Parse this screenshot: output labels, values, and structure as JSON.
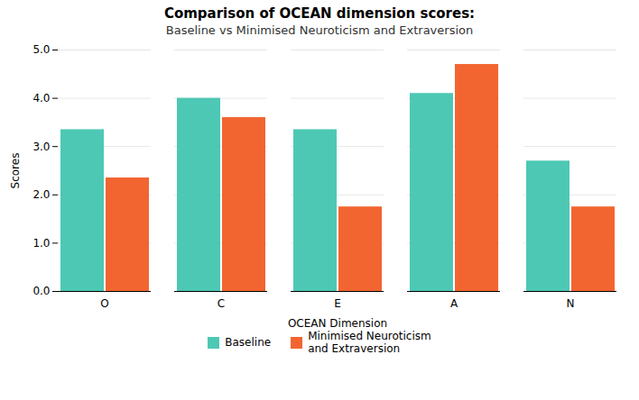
{
  "chart_data": {
    "type": "bar",
    "title": "Comparison of OCEAN dimension scores:",
    "subtitle": "Baseline vs Minimised Neuroticism and Extraversion",
    "xlabel": "OCEAN Dimension",
    "ylabel": "Scores",
    "categories": [
      "O",
      "C",
      "E",
      "A",
      "N"
    ],
    "series": [
      {
        "name": "Baseline",
        "color": "#4DC8B4",
        "values": [
          3.35,
          4.0,
          3.35,
          4.1,
          2.7
        ]
      },
      {
        "name": "Minimised Neuroticism\nand Extraversion",
        "color": "#F26531",
        "values": [
          2.35,
          3.6,
          1.75,
          4.7,
          1.75
        ]
      }
    ],
    "ylim": [
      0,
      5
    ],
    "yticks": [
      0,
      1,
      2,
      3,
      4,
      5
    ],
    "grid": true,
    "legend": "bottom"
  }
}
